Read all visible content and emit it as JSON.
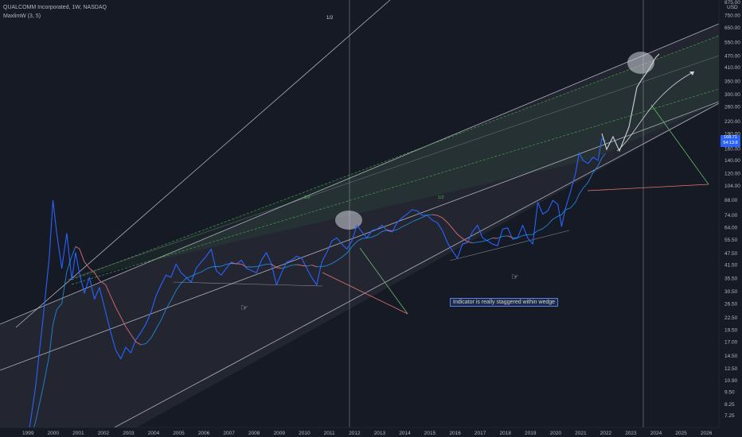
{
  "legend": {
    "symbol": "QUALCOMM Incorporated, 1W, NASDAQ",
    "indicator": "MaxlimW (3, 5)"
  },
  "annotation": {
    "text": "Indicator is really staggered within wedge"
  },
  "price_badge": {
    "line1": "168.71",
    "line2": "54:13:8"
  },
  "currency": "USD",
  "labels": {
    "half_top": "1/2",
    "half_left": "1/2",
    "half_right": "1/2"
  },
  "colors": {
    "background": "#161a25",
    "price_line": "#2962ff",
    "future_path": "#d1d4dc",
    "ma_line": "#2196f3",
    "ma_red": "#e05a5a",
    "channel_line": "#d1d4dc",
    "green_dashed": "#4caf50",
    "red_arrow": "#e57373",
    "green_arrow": "#66bb6a",
    "pitchfork_fill": "rgba(120,123,134,0.13)",
    "green_fill": "rgba(76,175,80,0.08)"
  },
  "chart_data": {
    "type": "line",
    "yscale": "log",
    "yticks": [
      7.25,
      8.25,
      9.5,
      10.9,
      12.5,
      14.5,
      17.0,
      19.5,
      22.5,
      26.5,
      30.5,
      35.5,
      41.5,
      47.5,
      55.5,
      64.0,
      74.0,
      88.0,
      104.0,
      120.0,
      140.0,
      160.0,
      190.0,
      220.0,
      260.0,
      300.0,
      350.0,
      410.0,
      470.0,
      550.0,
      650.0,
      750.0,
      875.0
    ],
    "ytick_labels": [
      "7.25",
      "8.25",
      "9.50",
      "10.90",
      "12.50",
      "14.50",
      "17.00",
      "19.50",
      "22.50",
      "26.50",
      "30.50",
      "35.50",
      "41.50",
      "47.50",
      "55.50",
      "64.00",
      "74.00",
      "88.00",
      "104.00",
      "120.00",
      "140.00",
      "160.00",
      "190.00",
      "220.00",
      "260.00",
      "300.00",
      "350.00",
      "410.00",
      "470.00",
      "550.00",
      "650.00",
      "750.00",
      "875.00"
    ],
    "xticks": [
      "1999",
      "2000",
      "2001",
      "2002",
      "2003",
      "2004",
      "2005",
      "2006",
      "2007",
      "2008",
      "2009",
      "2010",
      "2011",
      "2012",
      "2013",
      "2014",
      "2015",
      "2016",
      "2017",
      "2018",
      "2019",
      "2020",
      "2021",
      "2022",
      "2023",
      "2024",
      "2025",
      "2026"
    ],
    "series": [
      {
        "values_xy": [
          [
            1998.9,
            4.5
          ],
          [
            1999.3,
            10
          ],
          [
            1999.6,
            22
          ],
          [
            1999.85,
            45
          ],
          [
            2000.0,
            88
          ],
          [
            2000.15,
            60
          ],
          [
            2000.35,
            40
          ],
          [
            2000.55,
            60
          ],
          [
            2000.75,
            35
          ],
          [
            2000.9,
            48
          ],
          [
            2001.05,
            38
          ],
          [
            2001.25,
            30
          ],
          [
            2001.45,
            36
          ],
          [
            2001.65,
            28
          ],
          [
            2001.85,
            32
          ],
          [
            2002.1,
            24
          ],
          [
            2002.3,
            19
          ],
          [
            2002.5,
            15.5
          ],
          [
            2002.7,
            14
          ],
          [
            2002.9,
            16
          ],
          [
            2003.1,
            15
          ],
          [
            2003.3,
            17.5
          ],
          [
            2003.5,
            19
          ],
          [
            2003.7,
            21
          ],
          [
            2003.9,
            24
          ],
          [
            2004.1,
            29
          ],
          [
            2004.3,
            33
          ],
          [
            2004.5,
            37
          ],
          [
            2004.7,
            36
          ],
          [
            2004.9,
            42
          ],
          [
            2005.1,
            38
          ],
          [
            2005.3,
            36
          ],
          [
            2005.5,
            34
          ],
          [
            2005.7,
            40
          ],
          [
            2005.9,
            43
          ],
          [
            2006.1,
            46
          ],
          [
            2006.3,
            50
          ],
          [
            2006.5,
            39
          ],
          [
            2006.7,
            37
          ],
          [
            2006.9,
            40
          ],
          [
            2007.1,
            43
          ],
          [
            2007.3,
            42
          ],
          [
            2007.5,
            44
          ],
          [
            2007.7,
            40
          ],
          [
            2007.9,
            39
          ],
          [
            2008.1,
            38
          ],
          [
            2008.3,
            44
          ],
          [
            2008.5,
            48
          ],
          [
            2008.7,
            42
          ],
          [
            2008.9,
            33
          ],
          [
            2009.1,
            38
          ],
          [
            2009.3,
            43
          ],
          [
            2009.5,
            44
          ],
          [
            2009.7,
            46
          ],
          [
            2009.9,
            45
          ],
          [
            2010.1,
            40
          ],
          [
            2010.3,
            36
          ],
          [
            2010.5,
            33
          ],
          [
            2010.7,
            43
          ],
          [
            2010.9,
            48
          ],
          [
            2011.1,
            55
          ],
          [
            2011.3,
            57
          ],
          [
            2011.5,
            53
          ],
          [
            2011.7,
            50
          ],
          [
            2011.9,
            55
          ],
          [
            2012.1,
            66
          ],
          [
            2012.3,
            61
          ],
          [
            2012.5,
            57
          ],
          [
            2012.7,
            62
          ],
          [
            2012.9,
            63
          ],
          [
            2013.1,
            66
          ],
          [
            2013.3,
            62
          ],
          [
            2013.5,
            61
          ],
          [
            2013.7,
            68
          ],
          [
            2013.9,
            72
          ],
          [
            2014.1,
            75
          ],
          [
            2014.3,
            79
          ],
          [
            2014.5,
            78
          ],
          [
            2014.7,
            74
          ],
          [
            2014.9,
            74
          ],
          [
            2015.1,
            70
          ],
          [
            2015.3,
            68
          ],
          [
            2015.5,
            62
          ],
          [
            2015.7,
            54
          ],
          [
            2015.9,
            49
          ],
          [
            2016.1,
            45
          ],
          [
            2016.3,
            53
          ],
          [
            2016.5,
            54
          ],
          [
            2016.7,
            61
          ],
          [
            2016.9,
            66
          ],
          [
            2017.1,
            57
          ],
          [
            2017.3,
            55
          ],
          [
            2017.5,
            53
          ],
          [
            2017.7,
            52
          ],
          [
            2017.9,
            63
          ],
          [
            2018.1,
            64
          ],
          [
            2018.3,
            56
          ],
          [
            2018.5,
            57
          ],
          [
            2018.7,
            66
          ],
          [
            2018.9,
            57
          ],
          [
            2019.1,
            53
          ],
          [
            2019.3,
            86
          ],
          [
            2019.5,
            75
          ],
          [
            2019.7,
            78
          ],
          [
            2019.9,
            88
          ],
          [
            2020.1,
            84
          ],
          [
            2020.25,
            65
          ],
          [
            2020.4,
            80
          ],
          [
            2020.6,
            97
          ],
          [
            2020.8,
            120
          ],
          [
            2020.95,
            153
          ],
          [
            2021.1,
            140
          ],
          [
            2021.3,
            135
          ],
          [
            2021.5,
            145
          ],
          [
            2021.7,
            140
          ],
          [
            2021.85,
            180
          ],
          [
            2022.0,
            175
          ]
        ]
      }
    ]
  }
}
